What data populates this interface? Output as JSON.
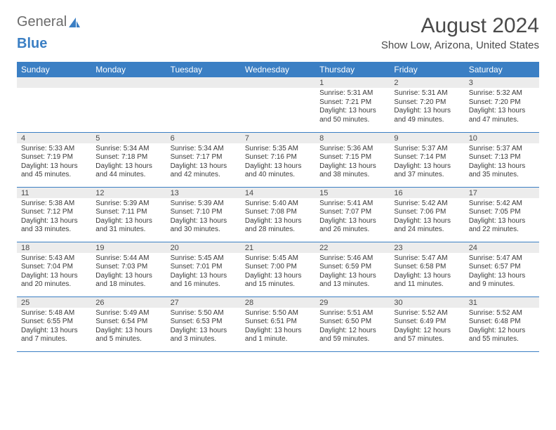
{
  "logo": {
    "text1": "General",
    "text2": "Blue"
  },
  "title": "August 2024",
  "location": "Show Low, Arizona, United States",
  "colors": {
    "accent": "#3b7fc4",
    "header_row_bg": "#3b7fc4",
    "header_row_text": "#ffffff",
    "daynum_bg": "#ececec",
    "text": "#4a4a4a"
  },
  "dayHeaders": [
    "Sunday",
    "Monday",
    "Tuesday",
    "Wednesday",
    "Thursday",
    "Friday",
    "Saturday"
  ],
  "startOffset": 4,
  "days": [
    {
      "n": 1,
      "sunrise": "5:31 AM",
      "sunset": "7:21 PM",
      "daylight": "13 hours and 50 minutes."
    },
    {
      "n": 2,
      "sunrise": "5:31 AM",
      "sunset": "7:20 PM",
      "daylight": "13 hours and 49 minutes."
    },
    {
      "n": 3,
      "sunrise": "5:32 AM",
      "sunset": "7:20 PM",
      "daylight": "13 hours and 47 minutes."
    },
    {
      "n": 4,
      "sunrise": "5:33 AM",
      "sunset": "7:19 PM",
      "daylight": "13 hours and 45 minutes."
    },
    {
      "n": 5,
      "sunrise": "5:34 AM",
      "sunset": "7:18 PM",
      "daylight": "13 hours and 44 minutes."
    },
    {
      "n": 6,
      "sunrise": "5:34 AM",
      "sunset": "7:17 PM",
      "daylight": "13 hours and 42 minutes."
    },
    {
      "n": 7,
      "sunrise": "5:35 AM",
      "sunset": "7:16 PM",
      "daylight": "13 hours and 40 minutes."
    },
    {
      "n": 8,
      "sunrise": "5:36 AM",
      "sunset": "7:15 PM",
      "daylight": "13 hours and 38 minutes."
    },
    {
      "n": 9,
      "sunrise": "5:37 AM",
      "sunset": "7:14 PM",
      "daylight": "13 hours and 37 minutes."
    },
    {
      "n": 10,
      "sunrise": "5:37 AM",
      "sunset": "7:13 PM",
      "daylight": "13 hours and 35 minutes."
    },
    {
      "n": 11,
      "sunrise": "5:38 AM",
      "sunset": "7:12 PM",
      "daylight": "13 hours and 33 minutes."
    },
    {
      "n": 12,
      "sunrise": "5:39 AM",
      "sunset": "7:11 PM",
      "daylight": "13 hours and 31 minutes."
    },
    {
      "n": 13,
      "sunrise": "5:39 AM",
      "sunset": "7:10 PM",
      "daylight": "13 hours and 30 minutes."
    },
    {
      "n": 14,
      "sunrise": "5:40 AM",
      "sunset": "7:08 PM",
      "daylight": "13 hours and 28 minutes."
    },
    {
      "n": 15,
      "sunrise": "5:41 AM",
      "sunset": "7:07 PM",
      "daylight": "13 hours and 26 minutes."
    },
    {
      "n": 16,
      "sunrise": "5:42 AM",
      "sunset": "7:06 PM",
      "daylight": "13 hours and 24 minutes."
    },
    {
      "n": 17,
      "sunrise": "5:42 AM",
      "sunset": "7:05 PM",
      "daylight": "13 hours and 22 minutes."
    },
    {
      "n": 18,
      "sunrise": "5:43 AM",
      "sunset": "7:04 PM",
      "daylight": "13 hours and 20 minutes."
    },
    {
      "n": 19,
      "sunrise": "5:44 AM",
      "sunset": "7:03 PM",
      "daylight": "13 hours and 18 minutes."
    },
    {
      "n": 20,
      "sunrise": "5:45 AM",
      "sunset": "7:01 PM",
      "daylight": "13 hours and 16 minutes."
    },
    {
      "n": 21,
      "sunrise": "5:45 AM",
      "sunset": "7:00 PM",
      "daylight": "13 hours and 15 minutes."
    },
    {
      "n": 22,
      "sunrise": "5:46 AM",
      "sunset": "6:59 PM",
      "daylight": "13 hours and 13 minutes."
    },
    {
      "n": 23,
      "sunrise": "5:47 AM",
      "sunset": "6:58 PM",
      "daylight": "13 hours and 11 minutes."
    },
    {
      "n": 24,
      "sunrise": "5:47 AM",
      "sunset": "6:57 PM",
      "daylight": "13 hours and 9 minutes."
    },
    {
      "n": 25,
      "sunrise": "5:48 AM",
      "sunset": "6:55 PM",
      "daylight": "13 hours and 7 minutes."
    },
    {
      "n": 26,
      "sunrise": "5:49 AM",
      "sunset": "6:54 PM",
      "daylight": "13 hours and 5 minutes."
    },
    {
      "n": 27,
      "sunrise": "5:50 AM",
      "sunset": "6:53 PM",
      "daylight": "13 hours and 3 minutes."
    },
    {
      "n": 28,
      "sunrise": "5:50 AM",
      "sunset": "6:51 PM",
      "daylight": "13 hours and 1 minute."
    },
    {
      "n": 29,
      "sunrise": "5:51 AM",
      "sunset": "6:50 PM",
      "daylight": "12 hours and 59 minutes."
    },
    {
      "n": 30,
      "sunrise": "5:52 AM",
      "sunset": "6:49 PM",
      "daylight": "12 hours and 57 minutes."
    },
    {
      "n": 31,
      "sunrise": "5:52 AM",
      "sunset": "6:48 PM",
      "daylight": "12 hours and 55 minutes."
    }
  ],
  "labels": {
    "sunrise": "Sunrise:",
    "sunset": "Sunset:",
    "daylight": "Daylight:"
  }
}
